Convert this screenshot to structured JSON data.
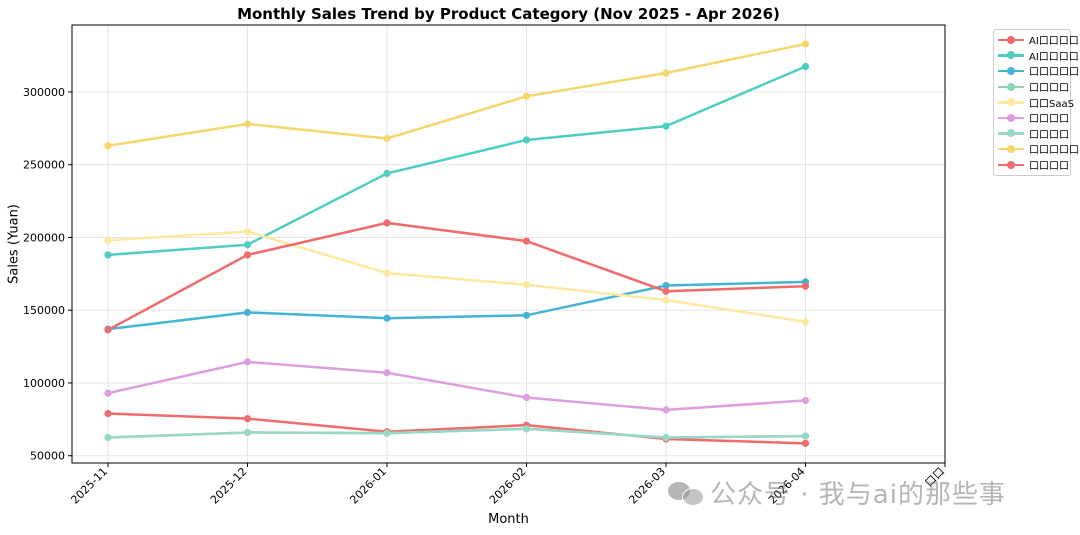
{
  "chart_data": {
    "type": "line",
    "title": "Monthly Sales Trend by Product Category (Nov 2025 - Apr 2026)",
    "xlabel": "Month",
    "ylabel": "Sales (Yuan)",
    "categories": [
      "2025-11",
      "2025-12",
      "2026-01",
      "2026-02",
      "2026-03",
      "2026-04"
    ],
    "extra_tick_label": "口口",
    "y_ticks": [
      50000,
      100000,
      150000,
      200000,
      250000,
      300000
    ],
    "ylim": [
      45000,
      346000
    ],
    "grid": true,
    "legend_position": "outside-top-right",
    "series": [
      {
        "name": "AI口口口口",
        "color": "#f06b6b",
        "values": [
          79000,
          75500,
          66500,
          71000,
          61500,
          58500
        ]
      },
      {
        "name": "AI口口口口",
        "color": "#4ecdc4",
        "values": [
          188000,
          195000,
          244000,
          267000,
          276500,
          317500
        ]
      },
      {
        "name": "口口口口口",
        "color": "#45b3d3",
        "values": [
          137000,
          148500,
          144500,
          146500,
          167000,
          169500
        ]
      },
      {
        "name": "口口口口",
        "color": "#8fd3b0",
        "values": [
          62500,
          66000,
          65500,
          68500,
          62500,
          63500
        ]
      },
      {
        "name": "口口SaaS",
        "color": "#fde9a0",
        "values": [
          198000,
          204000,
          175500,
          167500,
          157000,
          142000
        ]
      },
      {
        "name": "口口口口",
        "color": "#dd9edf",
        "values": [
          93000,
          114500,
          107000,
          90000,
          81500,
          88000
        ]
      },
      {
        "name": "口口口口",
        "color": "#98d8c8",
        "values": [
          62500,
          66000,
          65500,
          68500,
          62500,
          63500
        ]
      },
      {
        "name": "口口口口口口",
        "color": "#f5d76e",
        "values": [
          263000,
          278000,
          268000,
          297000,
          313000,
          333000
        ]
      },
      {
        "name": "口口口口",
        "color": "#f06b6b",
        "values": [
          136500,
          188000,
          210000,
          197500,
          163000,
          166500
        ]
      }
    ]
  },
  "watermark": {
    "text": "公众号 · 我与ai的那些事",
    "icon": "wechat-icon"
  }
}
